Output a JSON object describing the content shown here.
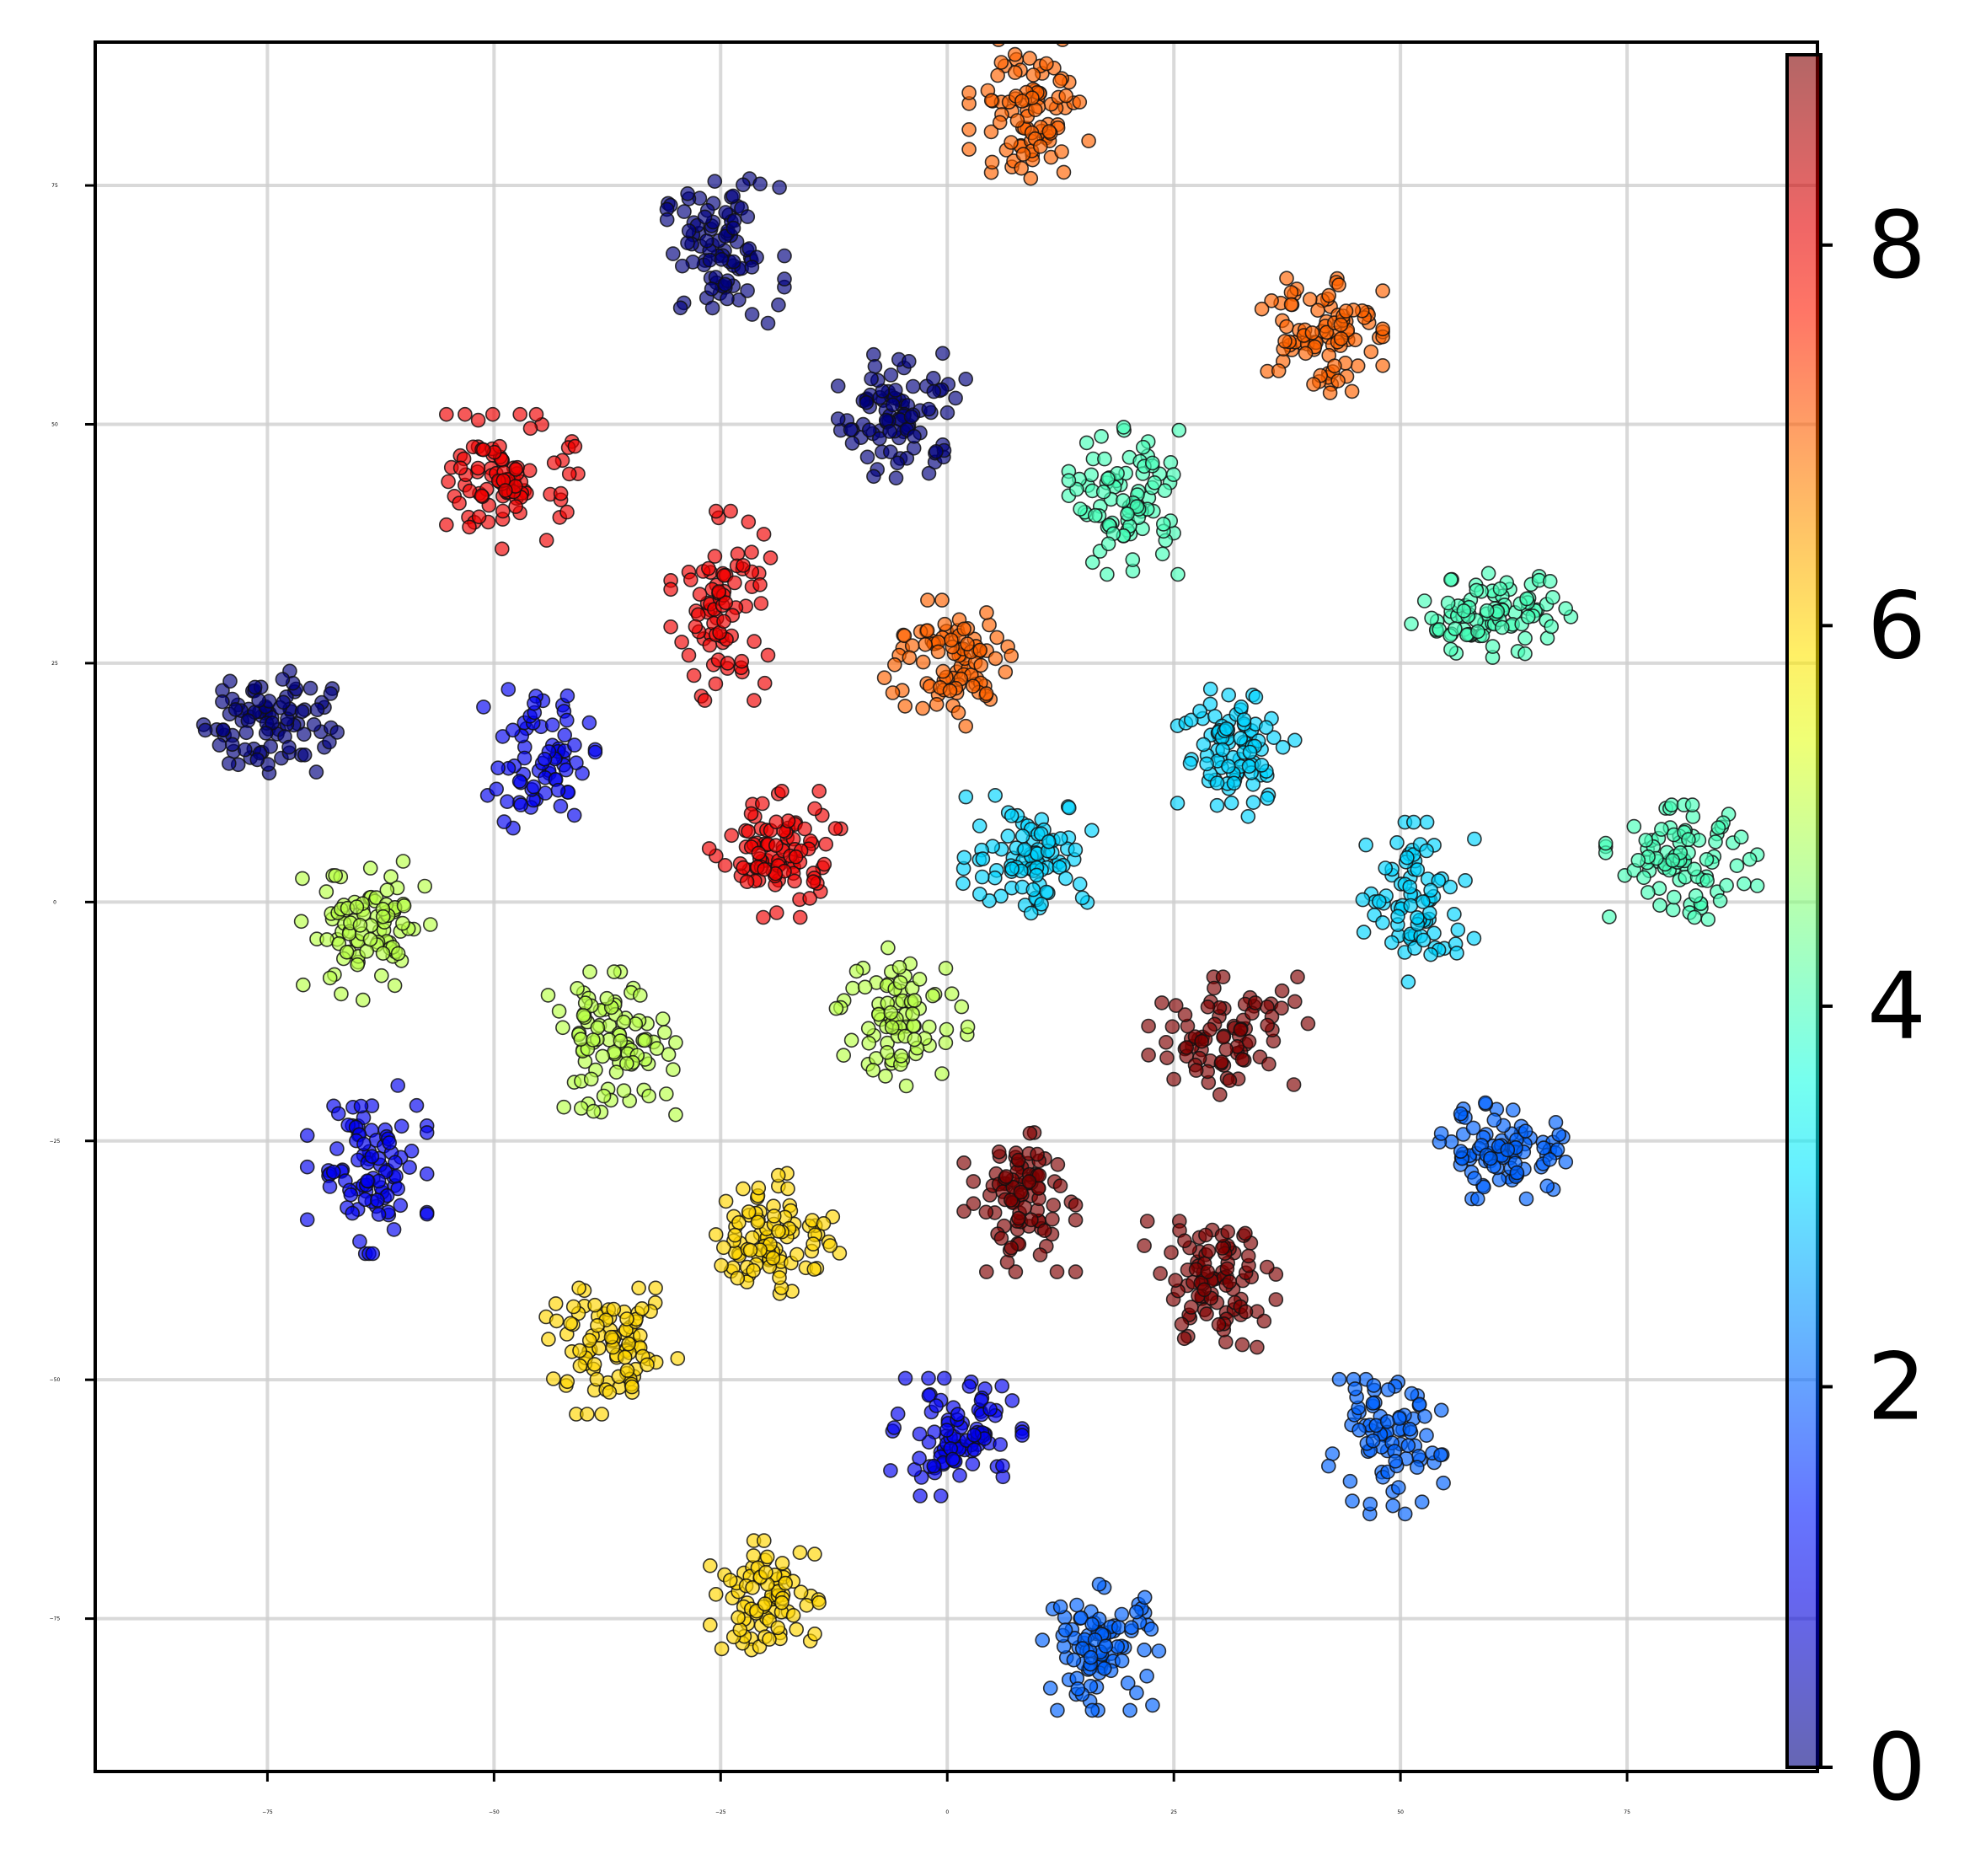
{
  "chart_data": {
    "type": "scatter",
    "title": "",
    "xlabel": "",
    "ylabel": "",
    "xlim": [
      -94,
      96
    ],
    "ylim": [
      -91,
      90
    ],
    "grid": true,
    "x_ticks": [
      -75,
      -50,
      -25,
      0,
      25,
      50,
      75
    ],
    "x_tick_labels": [
      "−75",
      "−50",
      "−25",
      "0",
      "25",
      "50",
      "75"
    ],
    "y_ticks": [
      -75,
      -50,
      -25,
      0,
      25,
      50,
      75
    ],
    "y_tick_labels": [
      "−75",
      "−50",
      "−25",
      "0",
      "25",
      "50",
      "75"
    ],
    "colorbar": {
      "colormap": "jet",
      "range": [
        0,
        9
      ],
      "ticks": [
        0,
        2,
        4,
        6,
        8
      ],
      "tick_labels": [
        "0",
        "2",
        "4",
        "6",
        "8"
      ],
      "placement": "right"
    },
    "clusters": [
      {
        "label": 0,
        "center": [
          -25,
          68
        ],
        "spread": [
          3.2,
          3.5
        ],
        "n": 90
      },
      {
        "label": 0,
        "center": [
          -5,
          51
        ],
        "spread": [
          3.2,
          3.2
        ],
        "n": 90
      },
      {
        "label": 0,
        "center": [
          -75,
          19
        ],
        "spread": [
          3.5,
          2.8
        ],
        "n": 90
      },
      {
        "label": 1,
        "center": [
          -45,
          15
        ],
        "spread": [
          2.8,
          3.3
        ],
        "n": 70
      },
      {
        "label": 1,
        "center": [
          -64,
          -28
        ],
        "spread": [
          3.0,
          4.0
        ],
        "n": 90
      },
      {
        "label": 1,
        "center": [
          1,
          -56
        ],
        "spread": [
          3.3,
          2.8
        ],
        "n": 90
      },
      {
        "label": 2,
        "center": [
          62,
          -26
        ],
        "spread": [
          3.5,
          2.3
        ],
        "n": 90
      },
      {
        "label": 2,
        "center": [
          48,
          -57
        ],
        "spread": [
          3.2,
          3.2
        ],
        "n": 80
      },
      {
        "label": 2,
        "center": [
          17,
          -78
        ],
        "spread": [
          3.0,
          3.0
        ],
        "n": 90
      },
      {
        "label": 3,
        "center": [
          32,
          16
        ],
        "spread": [
          3.0,
          3.2
        ],
        "n": 90
      },
      {
        "label": 3,
        "center": [
          9,
          5
        ],
        "spread": [
          3.3,
          2.8
        ],
        "n": 90
      },
      {
        "label": 3,
        "center": [
          52,
          0
        ],
        "spread": [
          2.8,
          3.8
        ],
        "n": 80
      },
      {
        "label": 4,
        "center": [
          20,
          42
        ],
        "spread": [
          3.0,
          3.5
        ],
        "n": 90
      },
      {
        "label": 4,
        "center": [
          60,
          30
        ],
        "spread": [
          4.0,
          2.0
        ],
        "n": 90
      },
      {
        "label": 4,
        "center": [
          81,
          4
        ],
        "spread": [
          3.8,
          2.8
        ],
        "n": 90
      },
      {
        "label": 5,
        "center": [
          -64,
          -3
        ],
        "spread": [
          3.3,
          3.3
        ],
        "n": 90
      },
      {
        "label": 5,
        "center": [
          -37,
          -15
        ],
        "spread": [
          3.2,
          3.5
        ],
        "n": 90
      },
      {
        "label": 5,
        "center": [
          -5,
          -12
        ],
        "spread": [
          3.3,
          3.3
        ],
        "n": 80
      },
      {
        "label": 6,
        "center": [
          -19,
          -35
        ],
        "spread": [
          3.3,
          3.0
        ],
        "n": 90
      },
      {
        "label": 6,
        "center": [
          -37,
          -47
        ],
        "spread": [
          3.3,
          3.0
        ],
        "n": 90
      },
      {
        "label": 6,
        "center": [
          -20,
          -73
        ],
        "spread": [
          2.8,
          2.8
        ],
        "n": 80
      },
      {
        "label": 7,
        "center": [
          9,
          83
        ],
        "spread": [
          3.0,
          3.3
        ],
        "n": 90
      },
      {
        "label": 7,
        "center": [
          41,
          60
        ],
        "spread": [
          3.2,
          3.3
        ],
        "n": 90
      },
      {
        "label": 7,
        "center": [
          0,
          25
        ],
        "spread": [
          3.3,
          3.0
        ],
        "n": 90
      },
      {
        "label": 8,
        "center": [
          -48,
          44
        ],
        "spread": [
          3.3,
          3.2
        ],
        "n": 90
      },
      {
        "label": 8,
        "center": [
          -25,
          31
        ],
        "spread": [
          2.5,
          4.5
        ],
        "n": 80
      },
      {
        "label": 8,
        "center": [
          -19,
          5
        ],
        "spread": [
          3.3,
          3.0
        ],
        "n": 90
      },
      {
        "label": 9,
        "center": [
          31,
          -14
        ],
        "spread": [
          4.0,
          2.8
        ],
        "n": 80
      },
      {
        "label": 9,
        "center": [
          8,
          -31
        ],
        "spread": [
          2.8,
          3.5
        ],
        "n": 90
      },
      {
        "label": 9,
        "center": [
          29,
          -40
        ],
        "spread": [
          3.3,
          3.0
        ],
        "n": 90
      }
    ]
  }
}
